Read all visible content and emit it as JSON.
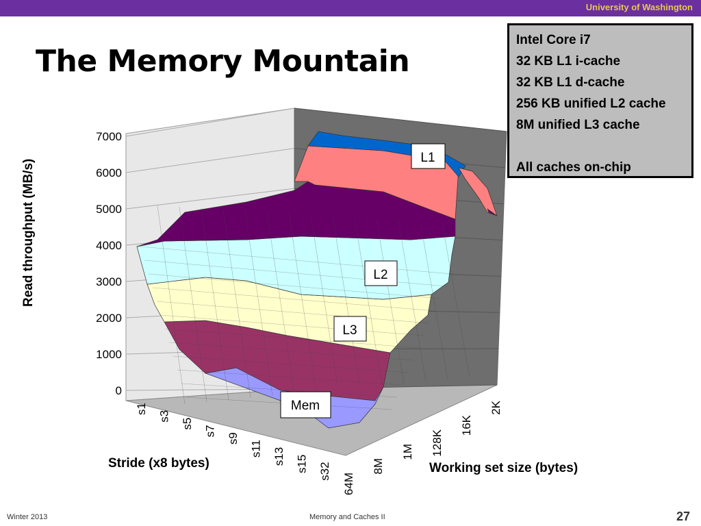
{
  "header": {
    "org": "University of Washington"
  },
  "slide": {
    "title": "The Memory Mountain"
  },
  "info_box": {
    "lines": [
      "Intel Core i7",
      "32 KB L1  i-cache",
      "32 KB L1 d-cache",
      "256 KB unified L2 cache",
      "8M unified L3 cache",
      "",
      "All caches on-chip"
    ]
  },
  "footer": {
    "left": "Winter 2013",
    "center": "Memory and Caches II",
    "page": "27"
  },
  "chart_data": {
    "type": "surface",
    "title": "",
    "zlabel": "Read  throughput (MB/s)",
    "xlabel": "Stride (x8 bytes)",
    "ylabel": "Working set size (bytes)",
    "z_ticks": [
      "0",
      "1000",
      "2000",
      "3000",
      "4000",
      "5000",
      "6000",
      "7000"
    ],
    "zlim": [
      0,
      7000
    ],
    "stride_ticks": [
      "s1",
      "s3",
      "s5",
      "s7",
      "s9",
      "s11",
      "s13",
      "s15",
      "s32"
    ],
    "size_ticks": [
      "64M",
      "8M",
      "1M",
      "128K",
      "16K",
      "2K"
    ],
    "band_colors": [
      "#9999ff",
      "#993366",
      "#ffffcc",
      "#ccffff",
      "#660066",
      "#ff8080",
      "#0066cc"
    ],
    "regions": [
      {
        "label": "L1",
        "approx_throughput_mb_s": 6500
      },
      {
        "label": "L2",
        "approx_throughput_mb_s": 3500
      },
      {
        "label": "L3",
        "approx_throughput_mb_s": 2000
      },
      {
        "label": "Mem",
        "approx_throughput_mb_s": 300
      }
    ]
  }
}
